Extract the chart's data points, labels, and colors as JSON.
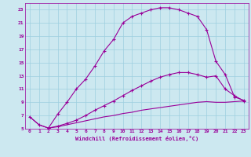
{
  "xlabel": "Windchill (Refroidissement éolien,°C)",
  "bg_color": "#cce8f0",
  "grid_color": "#9ecfdf",
  "line_color": "#990099",
  "xlim": [
    -0.5,
    23.5
  ],
  "ylim": [
    5,
    24
  ],
  "yticks": [
    5,
    7,
    9,
    11,
    13,
    15,
    17,
    19,
    21,
    23
  ],
  "xticks": [
    0,
    1,
    2,
    3,
    4,
    5,
    6,
    7,
    8,
    9,
    10,
    11,
    12,
    13,
    14,
    15,
    16,
    17,
    18,
    19,
    20,
    21,
    22,
    23
  ],
  "line1_x": [
    0,
    1,
    2,
    3,
    4,
    5,
    6,
    7,
    8,
    9,
    10,
    11,
    12,
    13,
    14,
    15,
    16,
    17,
    18,
    19,
    20,
    21,
    22,
    23
  ],
  "line1_y": [
    6.8,
    5.6,
    5.1,
    7.2,
    9.0,
    11.0,
    12.5,
    14.5,
    16.8,
    18.5,
    21.0,
    22.0,
    22.5,
    23.0,
    23.3,
    23.3,
    23.0,
    22.5,
    22.0,
    20.0,
    15.2,
    13.2,
    9.8,
    9.3
  ],
  "line2_x": [
    0,
    1,
    2,
    3,
    4,
    5,
    6,
    7,
    8,
    9,
    10,
    11,
    12,
    13,
    14,
    15,
    16,
    17,
    18,
    19,
    20,
    21,
    22,
    23
  ],
  "line2_y": [
    6.8,
    5.6,
    5.1,
    5.3,
    5.6,
    5.9,
    6.2,
    6.5,
    6.8,
    7.0,
    7.3,
    7.5,
    7.8,
    8.0,
    8.2,
    8.4,
    8.6,
    8.8,
    9.0,
    9.1,
    9.0,
    9.0,
    9.1,
    9.2
  ],
  "line3_x": [
    2,
    3,
    4,
    5,
    6,
    7,
    8,
    9,
    10,
    11,
    12,
    13,
    14,
    15,
    16,
    17,
    18,
    19,
    20,
    21,
    22,
    23
  ],
  "line3_y": [
    5.1,
    5.4,
    5.8,
    6.3,
    7.0,
    7.8,
    8.5,
    9.2,
    10.0,
    10.8,
    11.5,
    12.2,
    12.8,
    13.2,
    13.5,
    13.5,
    13.2,
    12.8,
    13.0,
    11.0,
    10.0,
    9.2
  ]
}
